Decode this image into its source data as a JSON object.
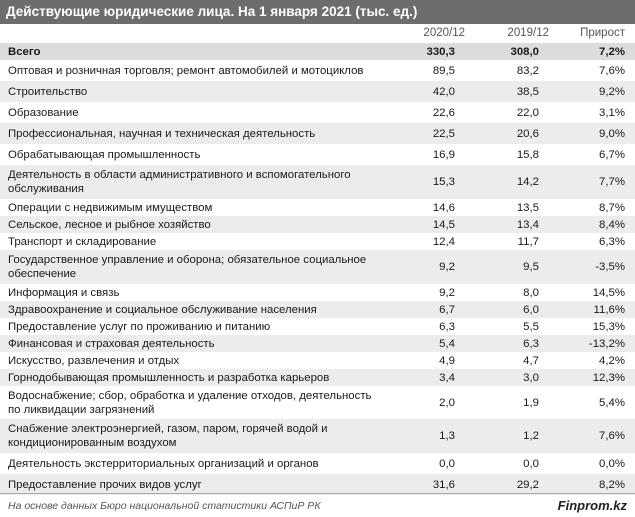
{
  "title": "Действующие юридические лица. На 1 января 2021 (тыс. ед.)",
  "columns": {
    "c2020": "2020/12",
    "c2019": "2019/12",
    "growth": "Прирост"
  },
  "rows": [
    {
      "name": "Всего",
      "v2020": "330,3",
      "v2019": "308,0",
      "growth": "7,2%"
    },
    {
      "name": "Оптовая и розничная торговля; ремонт автомобилей и мотоциклов",
      "v2020": "89,5",
      "v2019": "83,2",
      "growth": "7,6%"
    },
    {
      "name": "Строительство",
      "v2020": "42,0",
      "v2019": "38,5",
      "growth": "9,2%"
    },
    {
      "name": "Образование",
      "v2020": "22,6",
      "v2019": "22,0",
      "growth": "3,1%"
    },
    {
      "name": "Профессиональная, научная и техническая деятельность",
      "v2020": "22,5",
      "v2019": "20,6",
      "growth": "9,0%"
    },
    {
      "name": "Обрабатывающая промышленность",
      "v2020": "16,9",
      "v2019": "15,8",
      "growth": "6,7%"
    },
    {
      "name": "Деятельность в области административного и вспомогательного обслуживания",
      "v2020": "15,3",
      "v2019": "14,2",
      "growth": "7,7%"
    },
    {
      "name": "Операции с недвижимым имуществом",
      "v2020": "14,6",
      "v2019": "13,5",
      "growth": "8,7%"
    },
    {
      "name": "Сельское, лесное и рыбное хозяйство",
      "v2020": "14,5",
      "v2019": "13,4",
      "growth": "8,4%"
    },
    {
      "name": "Транспорт и складирование",
      "v2020": "12,4",
      "v2019": "11,7",
      "growth": "6,3%"
    },
    {
      "name": "Государственное управление и оборона; обязательное социальное обеспечение",
      "v2020": "9,2",
      "v2019": "9,5",
      "growth": "-3,5%"
    },
    {
      "name": "Информация и связь",
      "v2020": "9,2",
      "v2019": "8,0",
      "growth": "14,5%"
    },
    {
      "name": "Здравоохранение и социальное обслуживание населения",
      "v2020": "6,7",
      "v2019": "6,0",
      "growth": "11,6%"
    },
    {
      "name": "Предоставление услуг по проживанию и питанию",
      "v2020": "6,3",
      "v2019": "5,5",
      "growth": "15,3%"
    },
    {
      "name": "Финансовая и страховая деятельность",
      "v2020": "5,4",
      "v2019": "6,3",
      "growth": "-13,2%"
    },
    {
      "name": "Искусство, развлечения и отдых",
      "v2020": "4,9",
      "v2019": "4,7",
      "growth": "4,2%"
    },
    {
      "name": "Горнодобывающая промышленность и разработка карьеров",
      "v2020": "3,4",
      "v2019": "3,0",
      "growth": "12,3%"
    },
    {
      "name": "Водоснабжение; сбор, обработка и удаление отходов, деятельность по ликвидации загрязнений",
      "v2020": "2,0",
      "v2019": "1,9",
      "growth": "5,4%"
    },
    {
      "name": "Снабжение электроэнергией, газом, паром, горячей водой и кондиционированным воздухом",
      "v2020": "1,3",
      "v2019": "1,2",
      "growth": "7,6%"
    },
    {
      "name": "Деятельность экстерриториальных организаций и органов",
      "v2020": "0,0",
      "v2019": "0,0",
      "growth": "0,0%"
    },
    {
      "name": "Предоставление прочих видов услуг",
      "v2020": "31,6",
      "v2019": "29,2",
      "growth": "8,2%"
    }
  ],
  "footer": {
    "source": "На основе данных Бюро национальной статистики АСПиР РК",
    "brand": "Finprom.kz"
  }
}
